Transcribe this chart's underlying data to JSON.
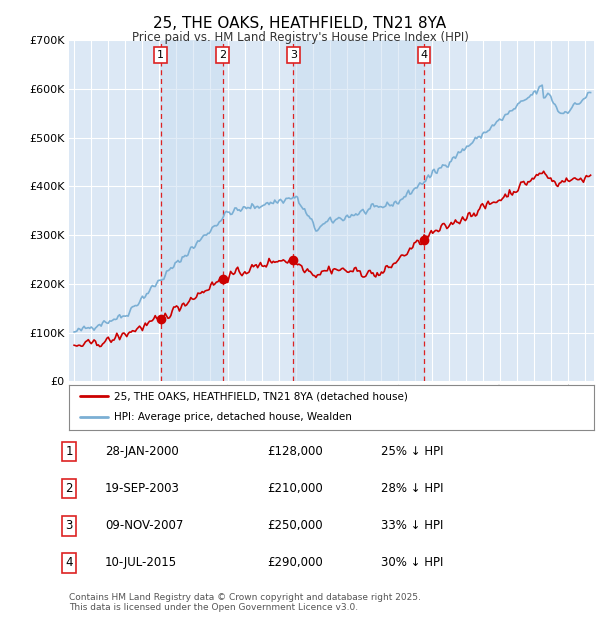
{
  "title": "25, THE OAKS, HEATHFIELD, TN21 8YA",
  "subtitle": "Price paid vs. HM Land Registry's House Price Index (HPI)",
  "background_color": "#ffffff",
  "plot_bg_color": "#dce8f5",
  "grid_color": "#ffffff",
  "shade_color": "#c8ddf0",
  "ylim": [
    0,
    700000
  ],
  "yticks": [
    0,
    100000,
    200000,
    300000,
    400000,
    500000,
    600000,
    700000
  ],
  "ytick_labels": [
    "£0",
    "£100K",
    "£200K",
    "£300K",
    "£400K",
    "£500K",
    "£600K",
    "£700K"
  ],
  "xlim_start": 1994.7,
  "xlim_end": 2025.5,
  "hpi_color": "#7bafd4",
  "price_color": "#cc0000",
  "vline_color": "#dd2222",
  "sale_dates": [
    2000.07,
    2003.72,
    2007.86,
    2015.53
  ],
  "sale_labels": [
    "1",
    "2",
    "3",
    "4"
  ],
  "sale_prices": [
    128000,
    210000,
    250000,
    290000
  ],
  "legend_entries": [
    "25, THE OAKS, HEATHFIELD, TN21 8YA (detached house)",
    "HPI: Average price, detached house, Wealden"
  ],
  "table_rows": [
    [
      "1",
      "28-JAN-2000",
      "£128,000",
      "25% ↓ HPI"
    ],
    [
      "2",
      "19-SEP-2003",
      "£210,000",
      "28% ↓ HPI"
    ],
    [
      "3",
      "09-NOV-2007",
      "£250,000",
      "33% ↓ HPI"
    ],
    [
      "4",
      "10-JUL-2015",
      "£290,000",
      "30% ↓ HPI"
    ]
  ],
  "footer": "Contains HM Land Registry data © Crown copyright and database right 2025.\nThis data is licensed under the Open Government Licence v3.0."
}
